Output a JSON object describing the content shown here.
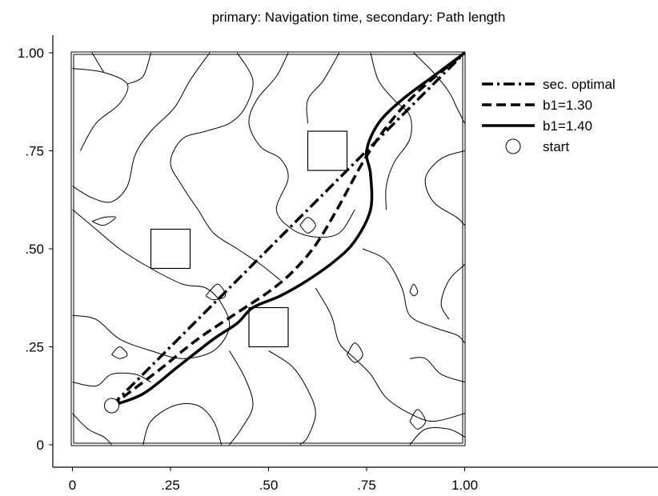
{
  "chart_data": {
    "type": "line",
    "title": "primary: Navigation time,   secondary: Path length",
    "xlabel": "",
    "ylabel": "",
    "xlim": [
      0,
      1
    ],
    "ylim": [
      0,
      1
    ],
    "x_ticks": [
      "0",
      ".25",
      ".50",
      ".75",
      "1.00"
    ],
    "y_ticks": [
      "0",
      ".25",
      ".50",
      ".75",
      "1.00"
    ],
    "legend_position": "top-right",
    "grid": false,
    "start": {
      "name": "start",
      "x": 0.1,
      "y": 0.1
    },
    "obstacles": [
      {
        "x": 0.25,
        "y": 0.5
      },
      {
        "x": 0.5,
        "y": 0.3
      },
      {
        "x": 0.65,
        "y": 0.75
      }
    ],
    "series": [
      {
        "name": "sec. optimal",
        "style": "dashdot",
        "points": [
          [
            0.1,
            0.1
          ],
          [
            1.0,
            1.0
          ]
        ]
      },
      {
        "name": "b1=1.30",
        "style": "dashed",
        "points": [
          [
            0.1,
            0.1
          ],
          [
            0.22,
            0.19
          ],
          [
            0.32,
            0.27
          ],
          [
            0.44,
            0.35
          ],
          [
            0.5,
            0.39
          ],
          [
            0.56,
            0.44
          ],
          [
            0.62,
            0.51
          ],
          [
            0.68,
            0.61
          ],
          [
            0.74,
            0.72
          ],
          [
            0.8,
            0.81
          ],
          [
            0.88,
            0.9
          ],
          [
            1.0,
            1.0
          ]
        ]
      },
      {
        "name": "b1=1.40",
        "style": "solid",
        "points": [
          [
            0.1,
            0.1
          ],
          [
            0.18,
            0.13
          ],
          [
            0.27,
            0.2
          ],
          [
            0.36,
            0.27
          ],
          [
            0.42,
            0.31
          ],
          [
            0.46,
            0.35
          ],
          [
            0.53,
            0.38
          ],
          [
            0.6,
            0.42
          ],
          [
            0.67,
            0.47
          ],
          [
            0.72,
            0.52
          ],
          [
            0.76,
            0.6
          ],
          [
            0.76,
            0.69
          ],
          [
            0.75,
            0.75
          ],
          [
            0.78,
            0.82
          ],
          [
            0.84,
            0.88
          ],
          [
            0.92,
            0.94
          ],
          [
            1.0,
            1.0
          ]
        ]
      }
    ],
    "contours": [
      [
        [
          0.0,
          0.96
        ],
        [
          0.08,
          0.95
        ],
        [
          0.14,
          0.92
        ],
        [
          0.12,
          0.87
        ],
        [
          0.06,
          0.82
        ],
        [
          0.02,
          0.75
        ]
      ],
      [
        [
          0.05,
          1.0
        ],
        [
          0.08,
          0.95
        ]
      ],
      [
        [
          0.2,
          1.0
        ],
        [
          0.18,
          0.94
        ],
        [
          0.14,
          0.92
        ]
      ],
      [
        [
          0.35,
          1.0
        ],
        [
          0.3,
          0.93
        ],
        [
          0.26,
          0.86
        ],
        [
          0.2,
          0.8
        ],
        [
          0.16,
          0.74
        ],
        [
          0.14,
          0.66
        ],
        [
          0.1,
          0.62
        ],
        [
          0.05,
          0.63
        ],
        [
          0.0,
          0.66
        ]
      ],
      [
        [
          0.0,
          0.6
        ],
        [
          0.06,
          0.55
        ],
        [
          0.12,
          0.5
        ],
        [
          0.2,
          0.45
        ],
        [
          0.28,
          0.41
        ],
        [
          0.34,
          0.4
        ],
        [
          0.38,
          0.36
        ],
        [
          0.4,
          0.3
        ],
        [
          0.36,
          0.24
        ],
        [
          0.28,
          0.22
        ],
        [
          0.2,
          0.24
        ],
        [
          0.12,
          0.27
        ],
        [
          0.06,
          0.32
        ],
        [
          0.0,
          0.33
        ]
      ],
      [
        [
          0.42,
          1.0
        ],
        [
          0.46,
          0.93
        ],
        [
          0.44,
          0.86
        ],
        [
          0.4,
          0.82
        ],
        [
          0.34,
          0.8
        ],
        [
          0.28,
          0.78
        ],
        [
          0.25,
          0.72
        ],
        [
          0.28,
          0.66
        ],
        [
          0.32,
          0.6
        ],
        [
          0.36,
          0.54
        ],
        [
          0.42,
          0.5
        ],
        [
          0.48,
          0.46
        ],
        [
          0.53,
          0.42
        ]
      ],
      [
        [
          0.55,
          1.0
        ],
        [
          0.52,
          0.94
        ],
        [
          0.47,
          0.88
        ],
        [
          0.45,
          0.82
        ],
        [
          0.48,
          0.76
        ],
        [
          0.53,
          0.73
        ],
        [
          0.55,
          0.68
        ],
        [
          0.52,
          0.6
        ],
        [
          0.56,
          0.55
        ],
        [
          0.62,
          0.53
        ],
        [
          0.68,
          0.54
        ],
        [
          0.72,
          0.6
        ]
      ],
      [
        [
          0.68,
          1.0
        ],
        [
          0.64,
          0.93
        ],
        [
          0.6,
          0.88
        ],
        [
          0.6,
          0.82
        ]
      ],
      [
        [
          0.76,
          1.0
        ],
        [
          0.78,
          0.93
        ],
        [
          0.82,
          0.88
        ],
        [
          0.86,
          0.84
        ],
        [
          0.86,
          0.78
        ],
        [
          0.82,
          0.72
        ],
        [
          0.8,
          0.66
        ],
        [
          0.8,
          0.6
        ]
      ],
      [
        [
          0.87,
          1.0
        ],
        [
          0.92,
          0.95
        ],
        [
          0.96,
          0.9
        ],
        [
          0.98,
          0.86
        ],
        [
          1.0,
          0.82
        ]
      ],
      [
        [
          1.0,
          0.75
        ],
        [
          0.94,
          0.73
        ],
        [
          0.9,
          0.68
        ],
        [
          0.92,
          0.62
        ],
        [
          0.98,
          0.58
        ],
        [
          1.0,
          0.56
        ]
      ],
      [
        [
          0.74,
          0.5
        ],
        [
          0.8,
          0.47
        ],
        [
          0.84,
          0.4
        ],
        [
          0.86,
          0.33
        ],
        [
          0.92,
          0.3
        ],
        [
          0.98,
          0.28
        ],
        [
          1.0,
          0.26
        ]
      ],
      [
        [
          1.0,
          0.46
        ],
        [
          0.96,
          0.42
        ],
        [
          0.94,
          0.36
        ],
        [
          0.96,
          0.32
        ]
      ],
      [
        [
          0.62,
          0.4
        ],
        [
          0.66,
          0.33
        ],
        [
          0.68,
          0.26
        ],
        [
          0.72,
          0.22
        ],
        [
          0.76,
          0.18
        ],
        [
          0.8,
          0.12
        ],
        [
          0.86,
          0.08
        ],
        [
          0.92,
          0.06
        ],
        [
          1.0,
          0.08
        ]
      ],
      [
        [
          0.5,
          0.24
        ],
        [
          0.56,
          0.2
        ],
        [
          0.6,
          0.14
        ],
        [
          0.62,
          0.08
        ],
        [
          0.6,
          0.02
        ],
        [
          0.58,
          0.0
        ]
      ],
      [
        [
          0.4,
          0.24
        ],
        [
          0.44,
          0.17
        ],
        [
          0.46,
          0.1
        ],
        [
          0.43,
          0.04
        ],
        [
          0.4,
          0.0
        ]
      ],
      [
        [
          0.18,
          0.0
        ],
        [
          0.2,
          0.06
        ],
        [
          0.26,
          0.1
        ],
        [
          0.32,
          0.1
        ],
        [
          0.36,
          0.06
        ],
        [
          0.38,
          0.0
        ]
      ],
      [
        [
          0.0,
          0.16
        ],
        [
          0.06,
          0.15
        ],
        [
          0.1,
          0.18
        ],
        [
          0.16,
          0.18
        ],
        [
          0.2,
          0.16
        ]
      ],
      [
        [
          0.0,
          0.08
        ],
        [
          0.04,
          0.04
        ],
        [
          0.08,
          0.02
        ],
        [
          0.1,
          0.0
        ]
      ],
      [
        [
          0.86,
          0.0
        ],
        [
          0.9,
          0.04
        ],
        [
          0.96,
          0.04
        ],
        [
          1.0,
          0.02
        ]
      ],
      [
        [
          1.0,
          0.16
        ],
        [
          0.94,
          0.18
        ],
        [
          0.9,
          0.22
        ],
        [
          0.86,
          0.22
        ]
      ],
      [
        [
          0.05,
          0.57
        ],
        [
          0.08,
          0.58
        ],
        [
          0.11,
          0.58
        ],
        [
          0.08,
          0.56
        ],
        [
          0.05,
          0.57
        ]
      ],
      [
        [
          0.58,
          0.56
        ],
        [
          0.6,
          0.58
        ],
        [
          0.62,
          0.56
        ],
        [
          0.6,
          0.54
        ],
        [
          0.58,
          0.56
        ]
      ],
      [
        [
          0.1,
          0.23
        ],
        [
          0.12,
          0.25
        ],
        [
          0.14,
          0.23
        ],
        [
          0.12,
          0.22
        ],
        [
          0.1,
          0.23
        ]
      ],
      [
        [
          0.34,
          0.38
        ],
        [
          0.37,
          0.41
        ],
        [
          0.39,
          0.38
        ],
        [
          0.36,
          0.37
        ],
        [
          0.34,
          0.38
        ]
      ],
      [
        [
          0.7,
          0.23
        ],
        [
          0.72,
          0.26
        ],
        [
          0.74,
          0.23
        ],
        [
          0.72,
          0.21
        ],
        [
          0.7,
          0.23
        ]
      ],
      [
        [
          0.86,
          0.39
        ],
        [
          0.87,
          0.41
        ],
        [
          0.88,
          0.39
        ],
        [
          0.87,
          0.38
        ],
        [
          0.86,
          0.39
        ]
      ],
      [
        [
          0.86,
          0.06
        ],
        [
          0.88,
          0.09
        ],
        [
          0.9,
          0.06
        ],
        [
          0.88,
          0.04
        ],
        [
          0.86,
          0.06
        ]
      ]
    ]
  }
}
